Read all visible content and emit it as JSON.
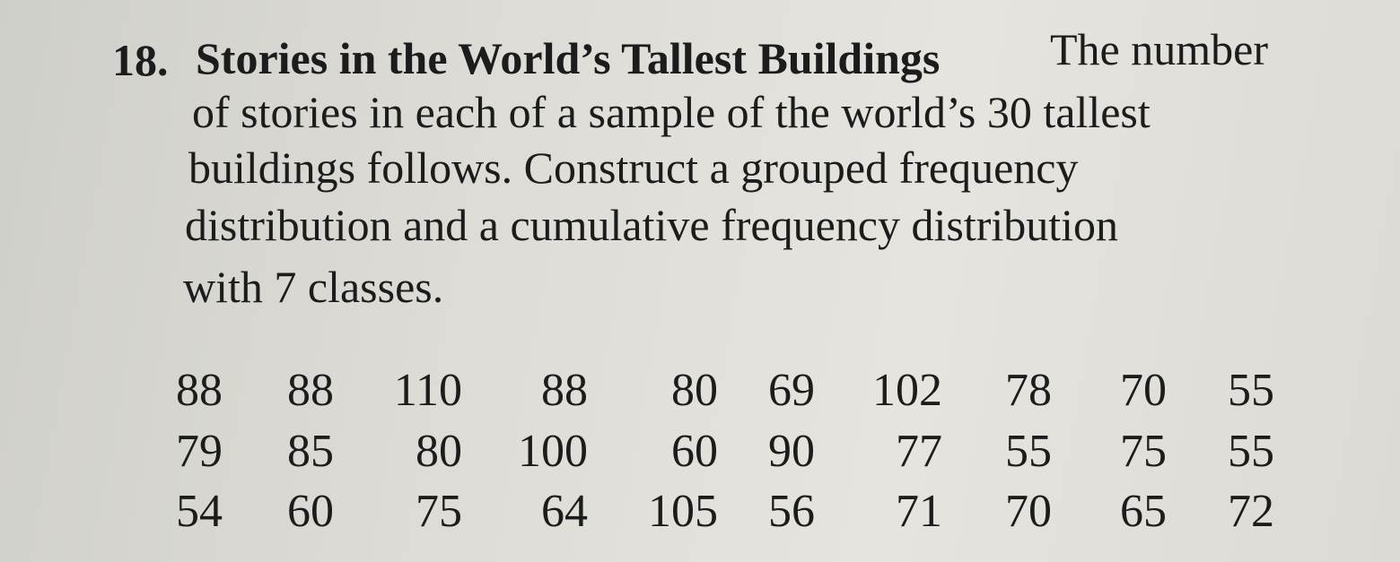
{
  "problem": {
    "number": "18.",
    "title": "Stories in the World’s Tallest Buildings",
    "text_lines": [
      "The number",
      "of stories in each of a sample of the world’s 30 tallest",
      "buildings follows. Construct a grouped frequency",
      "distribution and a cumulative frequency distribution",
      "with 7 classes."
    ]
  },
  "data_table": {
    "rows": [
      [
        88,
        88,
        110,
        88,
        80,
        69,
        102,
        78,
        70,
        55
      ],
      [
        79,
        85,
        80,
        100,
        60,
        90,
        77,
        55,
        75,
        55
      ],
      [
        54,
        60,
        75,
        64,
        105,
        56,
        71,
        70,
        65,
        72
      ]
    ]
  }
}
